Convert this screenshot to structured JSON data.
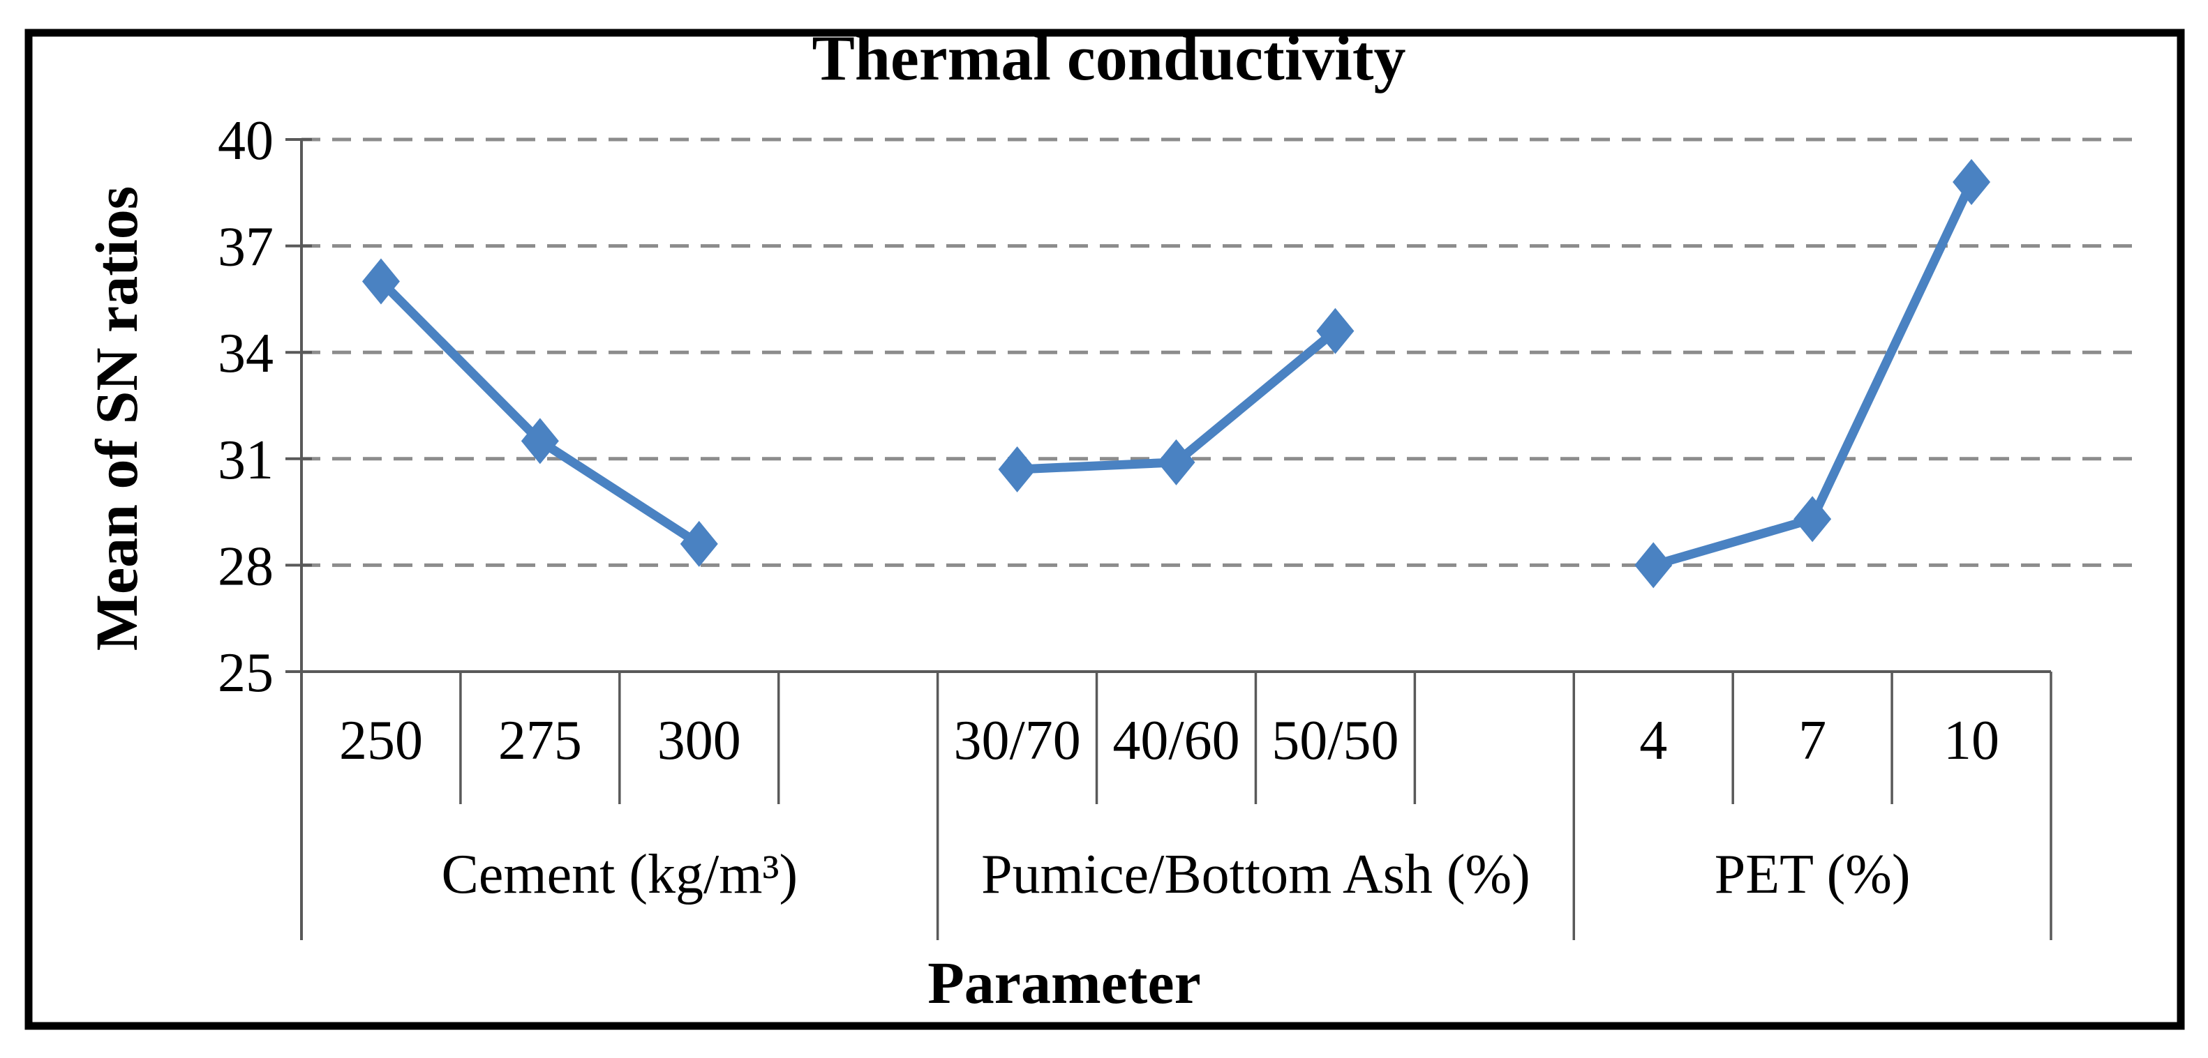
{
  "chart_data": {
    "type": "line",
    "title": "Thermal conductivity",
    "ylabel": "Mean of SN ratios",
    "xlabel": "Parameter",
    "ylim": [
      25,
      40
    ],
    "yticks": [
      25,
      28,
      31,
      34,
      37,
      40
    ],
    "grid": "horizontal-dashed",
    "legend_position": "none",
    "marker": "diamond",
    "panels": [
      {
        "label": "Cement (kg/m³)",
        "categories": [
          "250",
          "275",
          "300"
        ],
        "values": [
          36.0,
          31.5,
          28.6
        ]
      },
      {
        "label": "Pumice/Bottom Ash (%)",
        "categories": [
          "30/70",
          "40/60",
          "50/50"
        ],
        "values": [
          30.7,
          30.9,
          34.6
        ]
      },
      {
        "label": "PET (%)",
        "categories": [
          "4",
          "7",
          "10"
        ],
        "values": [
          28.0,
          29.3,
          38.8
        ]
      }
    ],
    "style": {
      "line_color": "#4a82c2",
      "grid_color": "#8c8c8c",
      "axis_color": "#595959",
      "text_color": "#000000",
      "frame_color": "#000000",
      "background": "#ffffff"
    }
  }
}
